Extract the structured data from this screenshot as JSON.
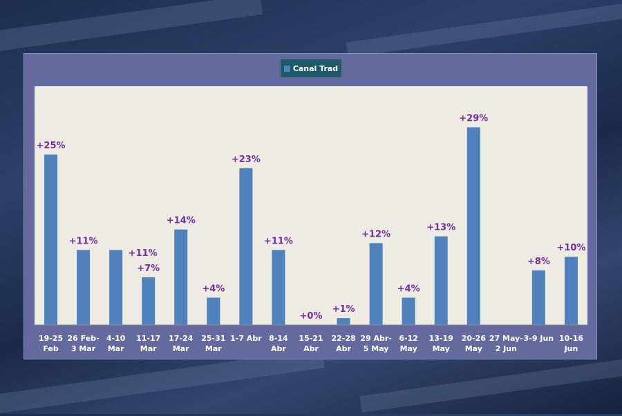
{
  "chart_data": {
    "type": "bar",
    "legend": [
      "Canal Trad"
    ],
    "legend_placement": "top-center",
    "colors": {
      "bar": "#4f81bd",
      "label": "#7030a0",
      "plot_bg": "#eeebe2",
      "panel_bg": "#646a9e",
      "legend_bg": "#1f5a6a"
    },
    "categories": [
      [
        "19-25",
        "Feb"
      ],
      [
        "26 Feb-",
        "3 Mar"
      ],
      [
        "4-10",
        "Mar"
      ],
      [
        "11-17",
        "Mar"
      ],
      [
        "17-24",
        "Mar"
      ],
      [
        "25-31",
        "Mar"
      ],
      [
        "1-7 Abr",
        ""
      ],
      [
        "8-14",
        "Abr"
      ],
      [
        "15-21",
        "Abr"
      ],
      [
        "22-28",
        "Abr"
      ],
      [
        "29 Abr-",
        "5 May"
      ],
      [
        "6-12",
        "May"
      ],
      [
        "13-19",
        "May"
      ],
      [
        "20-26",
        "May"
      ],
      [
        "27 May-",
        "2 Jun"
      ],
      [
        "3-9 Jun",
        ""
      ],
      [
        "10-16",
        "Jun"
      ]
    ],
    "values": [
      25,
      11,
      11,
      7,
      14,
      4,
      23,
      11,
      0,
      1,
      12,
      4,
      13,
      29,
      null,
      8,
      10
    ],
    "labels": [
      "+25%",
      "+11%",
      "+11%",
      "+7%",
      "+14%",
      "+4%",
      "+23%",
      "+11%",
      "+0%",
      "+1%",
      "+12%",
      "+4%",
      "+13%",
      "+29%",
      "",
      "+8%",
      "+10%"
    ],
    "ylim": [
      0,
      35
    ],
    "grid": false
  }
}
